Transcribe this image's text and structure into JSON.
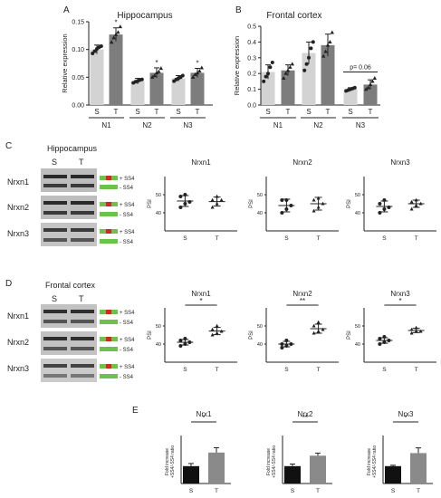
{
  "panel_letters": {
    "A": "A",
    "B": "B",
    "C": "C",
    "D": "D",
    "E": "E"
  },
  "colors": {
    "light_bar": "#d3d3d3",
    "dark_bar": "#7d7d7d",
    "black_bar": "#111111",
    "gray_bar": "#8a8a8a",
    "exon_green": "#6dc24b",
    "exon_red": "#d8232a",
    "error": "#222222"
  },
  "blot_labels": {
    "hippocampus_title": "Hippocampus",
    "frontal_title": "Frontal cortex",
    "lanes": [
      "S",
      "T"
    ],
    "rows": [
      "Nrxn1",
      "Nrxn2",
      "Nrxn3"
    ],
    "plus": "+ SS4",
    "minus": "- SS4"
  },
  "chart_data": [
    {
      "id": "A",
      "type": "bar",
      "title": "Hippocampus",
      "ylabel": "Relative expression",
      "ylim": [
        0,
        0.15
      ],
      "yticks": [
        "0.00",
        "0.05",
        "0.10",
        "0.15"
      ],
      "groups": [
        "N1",
        "N2",
        "N3"
      ],
      "categories": [
        "S",
        "T",
        "S",
        "T",
        "S",
        "T"
      ],
      "values": [
        0.1,
        0.127,
        0.043,
        0.058,
        0.048,
        0.058
      ],
      "errors": [
        0.008,
        0.012,
        0.005,
        0.009,
        0.005,
        0.008
      ],
      "sig": [
        "",
        "*",
        "",
        "*",
        "",
        "*"
      ],
      "points": [
        [
          0.093,
          0.097,
          0.101,
          0.104,
          0.106
        ],
        [
          0.113,
          0.121,
          0.127,
          0.131,
          0.141
        ],
        [
          0.04,
          0.042,
          0.043,
          0.045,
          0.046
        ],
        [
          0.05,
          0.053,
          0.058,
          0.06,
          0.066
        ],
        [
          0.043,
          0.046,
          0.048,
          0.05,
          0.053
        ],
        [
          0.05,
          0.055,
          0.058,
          0.061,
          0.067
        ]
      ]
    },
    {
      "id": "B",
      "type": "bar",
      "title": "Frontal cortex",
      "ylabel": "Relative expression",
      "ylim": [
        0,
        0.5
      ],
      "yticks": [
        "0.0",
        "0.1",
        "0.2",
        "0.3",
        "0.4",
        "0.5"
      ],
      "groups": [
        "N1",
        "N2",
        "N3"
      ],
      "categories": [
        "S",
        "T",
        "S",
        "T",
        "S",
        "T"
      ],
      "values": [
        0.21,
        0.22,
        0.33,
        0.38,
        0.1,
        0.13
      ],
      "errors": [
        0.045,
        0.035,
        0.07,
        0.07,
        0.01,
        0.03
      ],
      "sig": [
        "",
        "",
        "",
        "",
        "",
        ""
      ],
      "annotation": "p= 0.06",
      "points": [
        [
          0.15,
          0.18,
          0.2,
          0.24,
          0.27
        ],
        [
          0.17,
          0.2,
          0.22,
          0.24,
          0.26
        ],
        [
          0.22,
          0.26,
          0.3,
          0.36,
          0.4
        ],
        [
          0.31,
          0.34,
          0.38,
          0.4,
          0.46
        ],
        [
          0.09,
          0.095,
          0.1,
          0.105,
          0.11
        ],
        [
          0.1,
          0.11,
          0.13,
          0.15,
          0.17
        ]
      ]
    },
    {
      "id": "C1",
      "type": "scatter",
      "title": "Nrxn1",
      "ylabel": "PSI",
      "ylim": [
        30,
        60
      ],
      "yticks": [
        "40",
        "50"
      ],
      "categories": [
        "S",
        "T"
      ],
      "points": [
        [
          43,
          45,
          46,
          49,
          50
        ],
        [
          43,
          45,
          47,
          47,
          49
        ]
      ],
      "means": [
        46.5,
        46.2
      ],
      "sd": [
        3,
        2.5
      ],
      "sig": ""
    },
    {
      "id": "C2",
      "type": "scatter",
      "title": "Nrxn2",
      "ylabel": "PSI",
      "ylim": [
        30,
        60
      ],
      "yticks": [
        "40",
        "50"
      ],
      "categories": [
        "S",
        "T"
      ],
      "points": [
        [
          40,
          42,
          44,
          47,
          47
        ],
        [
          41,
          43,
          45,
          47,
          48
        ]
      ],
      "means": [
        44,
        45
      ],
      "sd": [
        3.5,
        3.5
      ],
      "sig": ""
    },
    {
      "id": "C3",
      "type": "scatter",
      "title": "Nrxn3",
      "ylabel": "PSI",
      "ylim": [
        30,
        60
      ],
      "yticks": [
        "40",
        "50"
      ],
      "categories": [
        "S",
        "T"
      ],
      "points": [
        [
          40,
          42,
          43,
          45,
          47
        ],
        [
          42,
          44,
          45,
          46,
          47
        ]
      ],
      "means": [
        43.5,
        45
      ],
      "sd": [
        3,
        2
      ],
      "sig": ""
    },
    {
      "id": "D1",
      "type": "scatter",
      "title": "Nrxn1",
      "ylabel": "PSI",
      "ylim": [
        30,
        60
      ],
      "yticks": [
        "40",
        "50"
      ],
      "categories": [
        "S",
        "T"
      ],
      "points": [
        [
          39,
          40,
          41,
          42,
          43
        ],
        [
          45,
          46,
          47,
          48,
          50
        ]
      ],
      "means": [
        41,
        47.2
      ],
      "sd": [
        1.5,
        2
      ],
      "sig": "*"
    },
    {
      "id": "D2",
      "type": "scatter",
      "title": "Nrxn2",
      "ylabel": "PSI",
      "ylim": [
        30,
        60
      ],
      "yticks": [
        "40",
        "50"
      ],
      "categories": [
        "S",
        "T"
      ],
      "points": [
        [
          38,
          39,
          40,
          40,
          42
        ],
        [
          46,
          47,
          48,
          50,
          52
        ]
      ],
      "means": [
        40,
        48.5
      ],
      "sd": [
        1.5,
        2.5
      ],
      "sig": "**"
    },
    {
      "id": "D3",
      "type": "scatter",
      "title": "Nrxn3",
      "ylabel": "PSI",
      "ylim": [
        30,
        60
      ],
      "yticks": [
        "40",
        "50"
      ],
      "categories": [
        "S",
        "T"
      ],
      "points": [
        [
          40,
          41,
          42,
          43,
          44
        ],
        [
          46,
          47,
          47,
          48,
          49
        ]
      ],
      "means": [
        42,
        47.5
      ],
      "sd": [
        1.5,
        1.2
      ],
      "sig": "*"
    },
    {
      "id": "E1",
      "type": "bar",
      "title": "Nrx1",
      "ylabel": "Fold increase\n+SS4/-SS4 ratio",
      "ylim": [
        0,
        2.5
      ],
      "yticks": [],
      "categories": [
        "S",
        "T"
      ],
      "values": [
        1.0,
        1.78
      ],
      "errors": [
        0.15,
        0.28
      ],
      "sig": "*"
    },
    {
      "id": "E2",
      "type": "bar",
      "title": "Nrx2",
      "ylabel": "Fold increase\n+SS4/-SS4 ratio",
      "ylim": [
        0,
        2.5
      ],
      "yticks": [],
      "categories": [
        "S",
        "T"
      ],
      "values": [
        1.0,
        1.6
      ],
      "errors": [
        0.12,
        0.15
      ],
      "sig": "**"
    },
    {
      "id": "E3",
      "type": "bar",
      "title": "Nrx3",
      "ylabel": "Fold increase\n+SS4/-SS4 ratio",
      "ylim": [
        0,
        2.5
      ],
      "yticks": [],
      "categories": [
        "S",
        "T"
      ],
      "values": [
        1.0,
        1.75
      ],
      "errors": [
        0.05,
        0.3
      ],
      "sig": "*"
    }
  ]
}
